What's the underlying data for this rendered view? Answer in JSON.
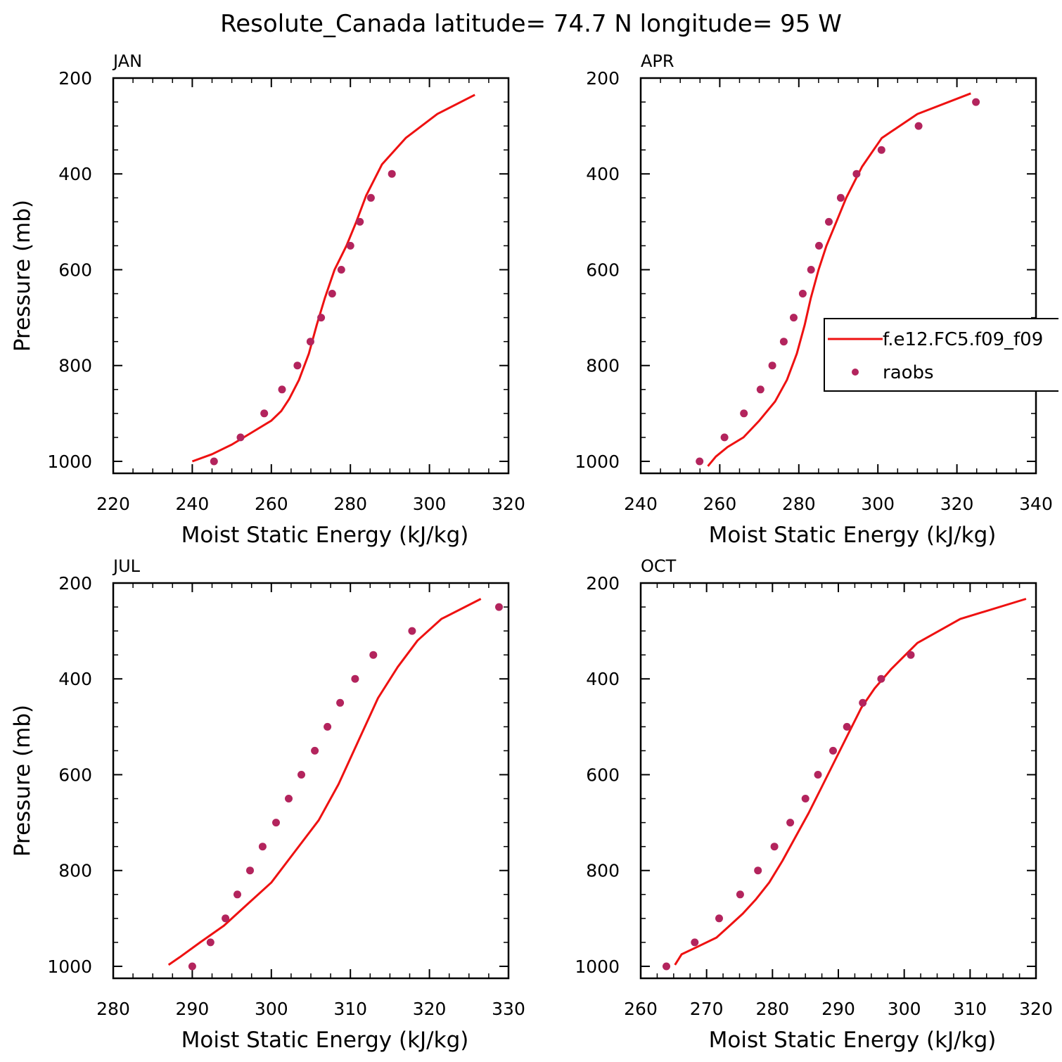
{
  "title": "Resolute_Canada  latitude= 74.7 N longitude= 95 W",
  "colors": {
    "model": "#ee1111",
    "obs": "#b3245d"
  },
  "legend": {
    "model_label": "f.e12.FC5.f09_f09",
    "obs_label": "raobs",
    "panel": "APR"
  },
  "chart_data": [
    {
      "type": "line",
      "panel": "JAN",
      "xlabel": "Moist Static Energy (kJ/kg)",
      "ylabel": "Pressure (mb)",
      "xlim": [
        220,
        320
      ],
      "ylim": [
        1025,
        200
      ],
      "xticks": [
        220,
        240,
        260,
        280,
        300,
        320
      ],
      "yticks": [
        200,
        400,
        600,
        800,
        1000
      ],
      "model": {
        "x": [
          240,
          245,
          250,
          255,
          260,
          262.5,
          264.5,
          267,
          269.5,
          271.5,
          273.5,
          276,
          279,
          281.5,
          284,
          288,
          294,
          302,
          311.5
        ],
        "y": [
          1000,
          985,
          965,
          940,
          915,
          895,
          870,
          830,
          775,
          715,
          660,
          600,
          550,
          500,
          445,
          380,
          325,
          275,
          235
        ]
      },
      "obs": {
        "x": [
          245.5,
          252.2,
          258.2,
          262.7,
          266.6,
          269.9,
          272.6,
          275.4,
          277.7,
          280,
          282.4,
          285.2,
          290.5
        ],
        "y": [
          1000,
          950,
          900,
          850,
          800,
          750,
          700,
          650,
          600,
          550,
          500,
          450,
          400
        ]
      }
    },
    {
      "type": "line",
      "panel": "APR",
      "xlabel": "Moist Static Energy (kJ/kg)",
      "ylabel": "",
      "xlim": [
        240,
        340
      ],
      "ylim": [
        1025,
        200
      ],
      "xticks": [
        240,
        260,
        280,
        300,
        320,
        340
      ],
      "yticks": [
        200,
        400,
        600,
        800,
        1000
      ],
      "model": {
        "x": [
          257,
          259,
          262,
          266,
          270,
          274,
          277,
          279.5,
          281.5,
          283,
          285,
          287,
          289.5,
          292,
          296,
          301,
          310,
          323.5
        ],
        "y": [
          1010,
          990,
          970,
          950,
          915,
          875,
          830,
          775,
          715,
          660,
          600,
          550,
          500,
          450,
          385,
          325,
          275,
          232
        ]
      },
      "obs": {
        "x": [
          254.9,
          261.2,
          266.1,
          270.3,
          273.3,
          276.2,
          278.7,
          281,
          283.1,
          285.1,
          287.6,
          290.6,
          294.6,
          300.9,
          310.3,
          324.8
        ],
        "y": [
          1000,
          950,
          900,
          850,
          800,
          750,
          700,
          650,
          600,
          550,
          500,
          450,
          400,
          350,
          300,
          250
        ]
      }
    },
    {
      "type": "line",
      "panel": "JUL",
      "xlabel": "Moist Static Energy (kJ/kg)",
      "ylabel": "Pressure (mb)",
      "xlim": [
        280,
        330
      ],
      "ylim": [
        1025,
        200
      ],
      "xticks": [
        280,
        290,
        300,
        310,
        320,
        330
      ],
      "yticks": [
        200,
        400,
        600,
        800,
        1000
      ],
      "model": {
        "x": [
          287,
          288.5,
          291,
          294,
          297,
          300,
          303,
          306,
          308.5,
          311,
          313.5,
          316,
          318.5,
          321.5,
          326.5
        ],
        "y": [
          997,
          980,
          950,
          915,
          870,
          825,
          760,
          695,
          620,
          530,
          440,
          375,
          320,
          275,
          233
        ]
      },
      "obs": {
        "x": [
          290,
          292.3,
          294.2,
          295.7,
          297.3,
          298.9,
          300.6,
          302.2,
          303.8,
          305.5,
          307.1,
          308.7,
          310.6,
          312.9,
          317.8,
          328.8
        ],
        "y": [
          1000,
          950,
          900,
          850,
          800,
          750,
          700,
          650,
          600,
          550,
          500,
          450,
          400,
          350,
          300,
          250
        ]
      }
    },
    {
      "type": "line",
      "panel": "OCT",
      "xlabel": "Moist Static Energy (kJ/kg)",
      "ylabel": "",
      "xlim": [
        260,
        320
      ],
      "ylim": [
        1025,
        200
      ],
      "xticks": [
        260,
        270,
        280,
        290,
        300,
        310,
        320
      ],
      "yticks": [
        200,
        400,
        600,
        800,
        1000
      ],
      "model": {
        "x": [
          265.2,
          266.2,
          268.5,
          271.5,
          273.5,
          275.5,
          277.5,
          279.5,
          281.5,
          283.5,
          285.5,
          287.5,
          289.5,
          291.5,
          293.5,
          295.5,
          298,
          302,
          308.5,
          318.5
        ],
        "y": [
          997,
          975,
          960,
          940,
          915,
          890,
          860,
          825,
          780,
          730,
          680,
          625,
          570,
          515,
          460,
          420,
          380,
          325,
          275,
          233
        ]
      },
      "obs": {
        "x": [
          263.9,
          268.2,
          271.9,
          275.1,
          277.8,
          280.3,
          282.7,
          285,
          286.9,
          289.2,
          291.3,
          293.7,
          296.5,
          301
        ],
        "y": [
          1000,
          950,
          900,
          850,
          800,
          750,
          700,
          650,
          600,
          550,
          500,
          450,
          400,
          350
        ]
      }
    }
  ]
}
